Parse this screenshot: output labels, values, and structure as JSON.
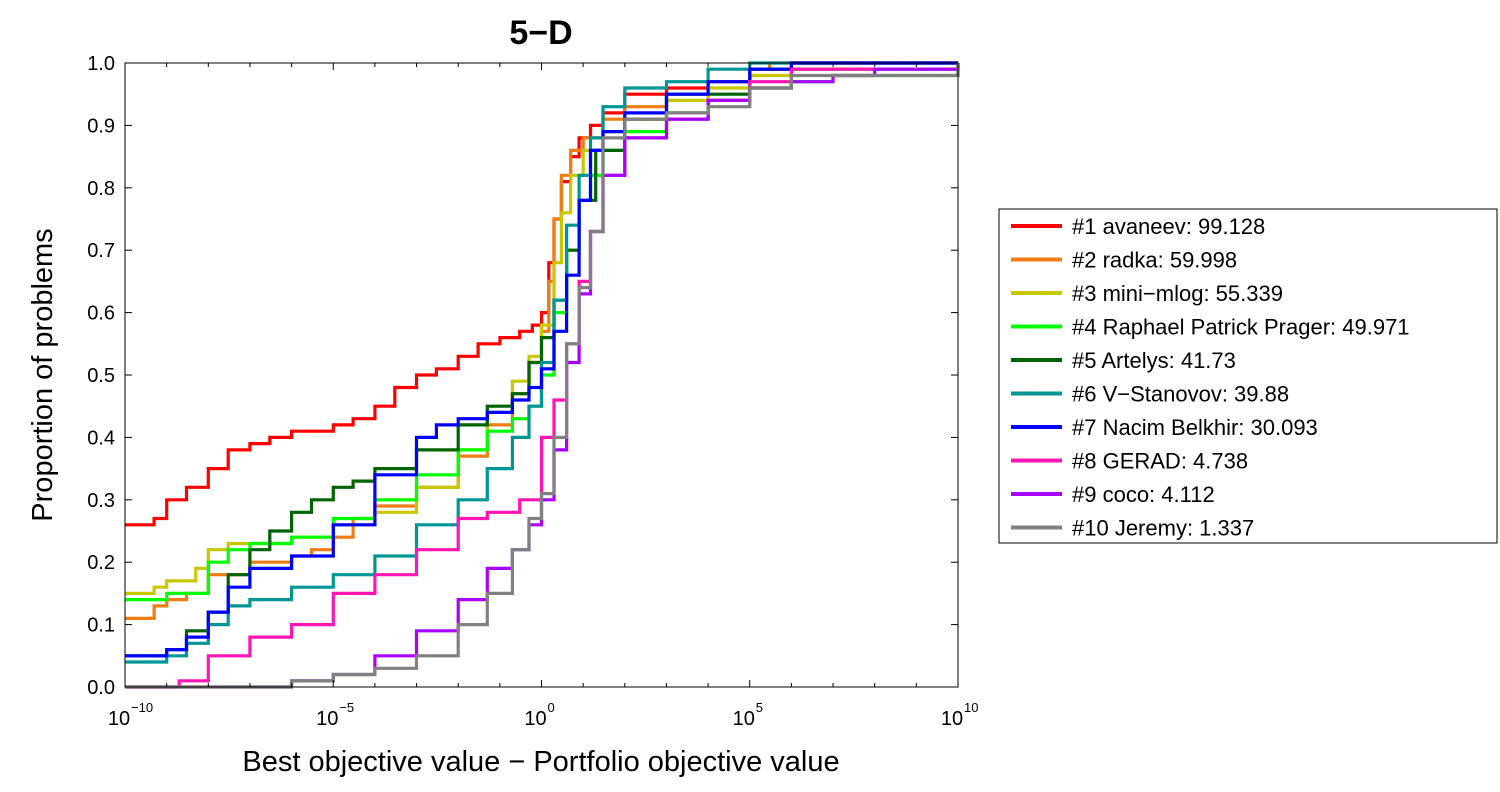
{
  "chart_data": {
    "type": "line",
    "title": "5−D",
    "xlabel": "Best objective value − Portfolio objective value",
    "ylabel": "Proportion of problems",
    "xscale": "log",
    "xlim": [
      1e-10,
      10000000000.0
    ],
    "ylim": [
      0,
      1
    ],
    "x_ticks": [
      {
        "base": "10",
        "exp": "−10",
        "value": -10
      },
      {
        "base": "10",
        "exp": "−5",
        "value": -5
      },
      {
        "base": "10",
        "exp": "0",
        "value": 0
      },
      {
        "base": "10",
        "exp": "5",
        "value": 5
      },
      {
        "base": "10",
        "exp": "10",
        "value": 10
      }
    ],
    "y_ticks": [
      "0.0",
      "0.1",
      "0.2",
      "0.3",
      "0.4",
      "0.5",
      "0.6",
      "0.7",
      "0.8",
      "0.9",
      "1.0"
    ],
    "grid": false,
    "legend_position": "right",
    "series": [
      {
        "name": "#1 avaneev: 99.128",
        "color": "#ff0000",
        "x": [
          1e-10,
          5e-10,
          1e-09,
          3e-09,
          1e-08,
          3e-08,
          1e-07,
          3e-07,
          1e-06,
          3e-06,
          1e-05,
          3e-05,
          0.0001,
          0.0003,
          0.001,
          0.003,
          0.01,
          0.03,
          0.1,
          0.3,
          0.6,
          1,
          1.5,
          2,
          3,
          5,
          8,
          15,
          30,
          100,
          1000,
          10000.0,
          100000.0,
          300000.0,
          1000000.0,
          10000000000.0
        ],
        "y": [
          0.26,
          0.27,
          0.3,
          0.32,
          0.35,
          0.38,
          0.39,
          0.4,
          0.41,
          0.41,
          0.42,
          0.43,
          0.45,
          0.48,
          0.5,
          0.51,
          0.53,
          0.55,
          0.56,
          0.57,
          0.58,
          0.6,
          0.68,
          0.75,
          0.81,
          0.85,
          0.88,
          0.9,
          0.92,
          0.95,
          0.96,
          0.97,
          0.99,
          0.99,
          1.0,
          1.0
        ]
      },
      {
        "name": "#2 radka: 59.998",
        "color": "#ef7d14",
        "x": [
          1e-10,
          5e-10,
          1e-09,
          3e-09,
          1e-08,
          1e-07,
          1e-06,
          3e-06,
          1e-05,
          3e-05,
          0.0001,
          0.001,
          0.01,
          0.05,
          0.2,
          0.5,
          1,
          1.5,
          2,
          3,
          5,
          10,
          30,
          100,
          1000,
          10000.0,
          100000.0,
          300000.0,
          1000000.0,
          10000000000.0
        ],
        "y": [
          0.11,
          0.13,
          0.14,
          0.15,
          0.18,
          0.2,
          0.21,
          0.22,
          0.24,
          0.27,
          0.29,
          0.32,
          0.37,
          0.42,
          0.47,
          0.52,
          0.57,
          0.65,
          0.75,
          0.82,
          0.86,
          0.88,
          0.91,
          0.93,
          0.95,
          0.97,
          0.99,
          1.0,
          1.0,
          1.0
        ]
      },
      {
        "name": "#3 mini−mlog: 55.339",
        "color": "#c8c800",
        "x": [
          1e-10,
          5e-10,
          1e-09,
          5e-09,
          1e-08,
          3e-08,
          1e-07,
          1e-06,
          1e-05,
          0.0001,
          0.001,
          0.01,
          0.05,
          0.2,
          0.5,
          1,
          2,
          3,
          5,
          10,
          30,
          100,
          1000,
          10000.0,
          100000.0,
          1000000.0,
          10000000000.0
        ],
        "y": [
          0.15,
          0.16,
          0.17,
          0.19,
          0.22,
          0.23,
          0.23,
          0.24,
          0.26,
          0.28,
          0.32,
          0.38,
          0.44,
          0.49,
          0.53,
          0.58,
          0.68,
          0.76,
          0.82,
          0.86,
          0.89,
          0.91,
          0.94,
          0.96,
          0.98,
          1.0,
          1.0
        ]
      },
      {
        "name": "#4 Raphael Patrick Prager: 49.971",
        "color": "#00ff00",
        "x": [
          1e-10,
          1e-09,
          1e-08,
          3e-08,
          1e-07,
          1e-06,
          1e-05,
          0.0001,
          0.001,
          0.01,
          0.05,
          0.2,
          0.5,
          1,
          2,
          4,
          8,
          15,
          30,
          100,
          1000,
          10000.0,
          100000.0,
          1000000.0,
          10000000.0,
          10000000000.0
        ],
        "y": [
          0.14,
          0.15,
          0.2,
          0.22,
          0.23,
          0.24,
          0.27,
          0.3,
          0.34,
          0.38,
          0.41,
          0.43,
          0.45,
          0.5,
          0.6,
          0.7,
          0.78,
          0.82,
          0.86,
          0.89,
          0.92,
          0.94,
          0.96,
          0.97,
          0.98,
          1.0
        ]
      },
      {
        "name": "#5 Artelys: 41.73",
        "color": "#006400",
        "x": [
          1e-10,
          1e-09,
          3e-09,
          1e-08,
          3e-08,
          1e-07,
          3e-07,
          1e-06,
          3e-06,
          1e-05,
          3e-05,
          0.0001,
          0.001,
          0.01,
          0.05,
          0.2,
          0.5,
          1,
          2,
          4,
          8,
          20,
          100,
          1000,
          100000.0,
          10000000000.0
        ],
        "y": [
          0.05,
          0.06,
          0.09,
          0.12,
          0.18,
          0.22,
          0.25,
          0.28,
          0.3,
          0.32,
          0.33,
          0.35,
          0.38,
          0.42,
          0.45,
          0.47,
          0.52,
          0.56,
          0.62,
          0.7,
          0.78,
          0.86,
          0.91,
          0.95,
          0.99,
          1.0
        ]
      },
      {
        "name": "#6 V−Stanovov: 39.88",
        "color": "#009696",
        "x": [
          1e-10,
          1e-09,
          3e-09,
          1e-08,
          3e-08,
          1e-07,
          1e-06,
          1e-05,
          0.0001,
          0.001,
          0.01,
          0.05,
          0.2,
          0.5,
          1,
          2,
          4,
          8,
          15,
          30,
          100,
          1000,
          10000.0,
          100000.0,
          10000000000.0
        ],
        "y": [
          0.04,
          0.05,
          0.07,
          0.1,
          0.13,
          0.14,
          0.16,
          0.18,
          0.21,
          0.26,
          0.3,
          0.35,
          0.4,
          0.45,
          0.52,
          0.62,
          0.74,
          0.82,
          0.88,
          0.93,
          0.96,
          0.97,
          0.99,
          1.0,
          1.0
        ]
      },
      {
        "name": "#7 Nacim Belkhir: 30.093",
        "color": "#0000ff",
        "x": [
          1e-10,
          1e-09,
          3e-09,
          1e-08,
          3e-08,
          1e-07,
          1e-06,
          1e-05,
          0.0001,
          0.001,
          0.003,
          0.01,
          0.05,
          0.2,
          0.5,
          1,
          2,
          4,
          8,
          15,
          30,
          100,
          1000,
          10000.0,
          100000.0,
          1000000.0,
          10000000000.0
        ],
        "y": [
          0.05,
          0.06,
          0.08,
          0.12,
          0.16,
          0.19,
          0.21,
          0.26,
          0.34,
          0.4,
          0.42,
          0.43,
          0.44,
          0.46,
          0.48,
          0.51,
          0.57,
          0.66,
          0.78,
          0.86,
          0.89,
          0.92,
          0.95,
          0.97,
          0.99,
          1.0,
          1.0
        ]
      },
      {
        "name": "#8 GERAD: 4.738",
        "color": "#ff14b4",
        "x": [
          1e-10,
          1e-09,
          2e-09,
          1e-08,
          1e-07,
          1e-06,
          1e-05,
          0.0001,
          0.001,
          0.01,
          0.05,
          0.3,
          1,
          2,
          4,
          8,
          15,
          30,
          100,
          1000,
          10000.0,
          100000.0,
          1000000.0,
          10000000000.0
        ],
        "y": [
          0.0,
          0.0,
          0.01,
          0.05,
          0.08,
          0.1,
          0.15,
          0.18,
          0.22,
          0.27,
          0.28,
          0.3,
          0.4,
          0.46,
          0.55,
          0.65,
          0.73,
          0.82,
          0.88,
          0.91,
          0.94,
          0.97,
          0.99,
          1.0
        ]
      },
      {
        "name": "#9 coco: 4.112",
        "color": "#aa00ff",
        "x": [
          1e-10,
          1e-07,
          1e-06,
          1e-05,
          0.0001,
          0.001,
          0.01,
          0.05,
          0.2,
          0.5,
          1,
          2,
          4,
          8,
          15,
          30,
          100,
          1000,
          10000.0,
          100000.0,
          1000000.0,
          10000000.0,
          100000000.0,
          10000000000.0
        ],
        "y": [
          0.0,
          0.0,
          0.01,
          0.02,
          0.05,
          0.09,
          0.14,
          0.19,
          0.22,
          0.26,
          0.3,
          0.38,
          0.52,
          0.63,
          0.73,
          0.82,
          0.88,
          0.91,
          0.94,
          0.96,
          0.97,
          0.98,
          0.99,
          1.0
        ]
      },
      {
        "name": "#10 Jeremy: 1.337",
        "color": "#808080",
        "x": [
          1e-10,
          5e-07,
          1e-06,
          1e-05,
          0.0001,
          0.001,
          0.01,
          0.05,
          0.2,
          0.5,
          1,
          2,
          4,
          8,
          15,
          30,
          100,
          1000,
          10000.0,
          100000.0,
          1000000.0,
          10000000000.0
        ],
        "y": [
          0.0,
          0.0,
          0.01,
          0.02,
          0.03,
          0.05,
          0.1,
          0.15,
          0.22,
          0.27,
          0.31,
          0.4,
          0.55,
          0.64,
          0.73,
          0.88,
          0.91,
          0.92,
          0.93,
          0.96,
          0.98,
          1.0
        ]
      }
    ]
  }
}
